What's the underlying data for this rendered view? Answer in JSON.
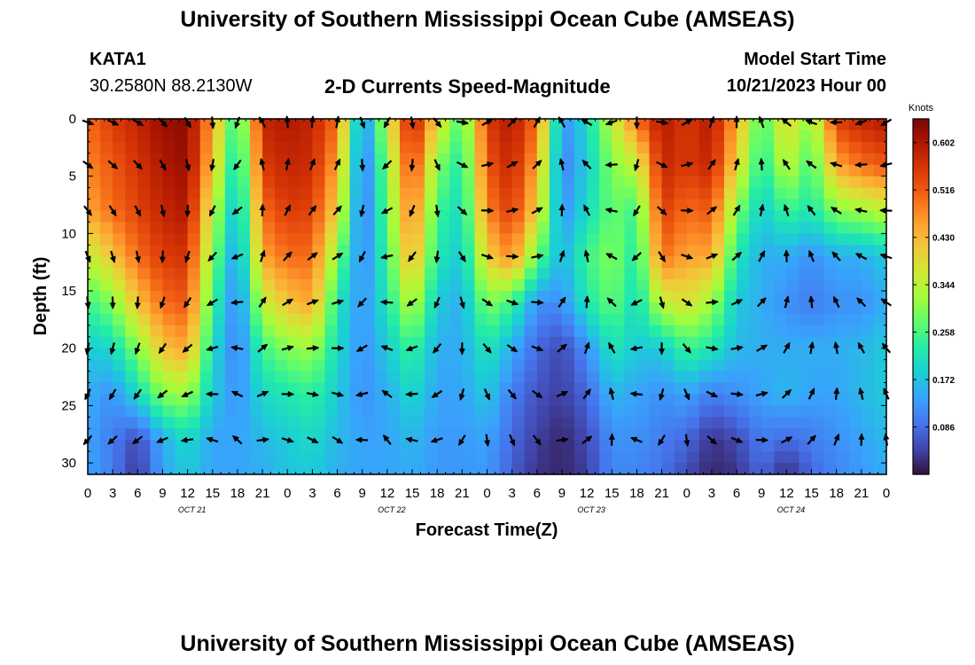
{
  "header": {
    "title": "University of Southern Mississippi Ocean Cube (AMSEAS)",
    "station_id": "KATA1",
    "station_coords": "30.2580N  88.2130W",
    "product": "2-D Currents Speed-Magnitude",
    "model_start_label": "Model Start Time",
    "model_start_value": "10/21/2023 Hour 00"
  },
  "footer": {
    "title": "University of Southern Mississippi Ocean Cube (AMSEAS)"
  },
  "chart_data": {
    "type": "heatmap",
    "title": "2-D Currents Speed-Magnitude",
    "xlabel": "Forecast Time(Z)",
    "ylabel": "Depth (ft)",
    "x_tick_labels": [
      "0",
      "3",
      "6",
      "9",
      "12",
      "15",
      "18",
      "21",
      "0",
      "3",
      "6",
      "9",
      "12",
      "15",
      "18",
      "21",
      "0",
      "3",
      "6",
      "9",
      "12",
      "15",
      "18",
      "21",
      "0",
      "3",
      "6",
      "9",
      "12",
      "15",
      "18",
      "21",
      "0"
    ],
    "x_range_hours": [
      0,
      96
    ],
    "day_labels": [
      {
        "text": "OCT 21",
        "hour": 12
      },
      {
        "text": "OCT 22",
        "hour": 36
      },
      {
        "text": "OCT 23",
        "hour": 60
      },
      {
        "text": "OCT 24",
        "hour": 84
      }
    ],
    "y_ticks": [
      0,
      5,
      10,
      15,
      20,
      25,
      30
    ],
    "ylim": [
      0,
      31
    ],
    "colorbar": {
      "label": "Knots",
      "ticks": [
        "0.602",
        "0.516",
        "0.430",
        "0.344",
        "0.258",
        "0.172",
        "0.086"
      ],
      "range": [
        0,
        0.645
      ],
      "colors": [
        "#30123b",
        "#4145ab",
        "#4675ed",
        "#39a2fc",
        "#1bcfd4",
        "#24eca6",
        "#61fc6c",
        "#a4fc3b",
        "#d1e834",
        "#f3c63a",
        "#fe9b2d",
        "#f36315",
        "#d93806",
        "#b11901",
        "#7a0403"
      ]
    },
    "arrow_depths_ft": [
      0,
      4,
      8,
      12,
      16,
      20,
      24,
      28
    ],
    "speed_profiles": {
      "depths_ft": [
        0,
        4,
        8,
        12,
        16,
        20,
        24,
        28,
        31
      ],
      "note": "speed in knots at 3-hour steps, hours 0..96",
      "series": [
        {
          "depth": 0,
          "values": [
            0.5,
            0.55,
            0.58,
            0.62,
            0.63,
            0.45,
            0.22,
            0.58,
            0.6,
            0.58,
            0.5,
            0.1,
            0.35,
            0.6,
            0.4,
            0.25,
            0.55,
            0.6,
            0.5,
            0.12,
            0.2,
            0.35,
            0.5,
            0.6,
            0.55,
            0.6,
            0.45,
            0.25,
            0.4,
            0.3,
            0.55,
            0.58,
            0.6
          ]
        },
        {
          "depth": 4,
          "values": [
            0.48,
            0.52,
            0.56,
            0.6,
            0.62,
            0.42,
            0.18,
            0.55,
            0.58,
            0.57,
            0.45,
            0.08,
            0.3,
            0.55,
            0.3,
            0.22,
            0.52,
            0.58,
            0.45,
            0.1,
            0.18,
            0.3,
            0.35,
            0.58,
            0.55,
            0.58,
            0.4,
            0.22,
            0.35,
            0.25,
            0.45,
            0.5,
            0.52
          ]
        },
        {
          "depth": 8,
          "values": [
            0.45,
            0.5,
            0.54,
            0.58,
            0.6,
            0.35,
            0.15,
            0.5,
            0.55,
            0.54,
            0.4,
            0.08,
            0.28,
            0.5,
            0.25,
            0.2,
            0.48,
            0.55,
            0.4,
            0.12,
            0.2,
            0.28,
            0.25,
            0.55,
            0.5,
            0.52,
            0.3,
            0.18,
            0.25,
            0.22,
            0.3,
            0.32,
            0.35
          ]
        },
        {
          "depth": 12,
          "values": [
            0.35,
            0.42,
            0.5,
            0.55,
            0.56,
            0.3,
            0.12,
            0.45,
            0.5,
            0.5,
            0.3,
            0.1,
            0.25,
            0.45,
            0.22,
            0.18,
            0.4,
            0.48,
            0.28,
            0.15,
            0.25,
            0.3,
            0.22,
            0.5,
            0.45,
            0.45,
            0.22,
            0.15,
            0.15,
            0.12,
            0.15,
            0.15,
            0.18
          ]
        },
        {
          "depth": 16,
          "values": [
            0.25,
            0.3,
            0.42,
            0.5,
            0.52,
            0.25,
            0.1,
            0.35,
            0.42,
            0.45,
            0.22,
            0.12,
            0.22,
            0.35,
            0.18,
            0.15,
            0.3,
            0.25,
            0.12,
            0.12,
            0.22,
            0.28,
            0.2,
            0.35,
            0.38,
            0.32,
            0.18,
            0.15,
            0.12,
            0.1,
            0.12,
            0.12,
            0.15
          ]
        },
        {
          "depth": 20,
          "values": [
            0.18,
            0.2,
            0.3,
            0.42,
            0.45,
            0.2,
            0.1,
            0.25,
            0.3,
            0.32,
            0.2,
            0.12,
            0.18,
            0.25,
            0.15,
            0.15,
            0.22,
            0.15,
            0.08,
            0.05,
            0.12,
            0.22,
            0.18,
            0.18,
            0.25,
            0.22,
            0.16,
            0.15,
            0.15,
            0.15,
            0.15,
            0.16,
            0.18
          ]
        },
        {
          "depth": 24,
          "values": [
            0.15,
            0.12,
            0.2,
            0.3,
            0.32,
            0.18,
            0.12,
            0.2,
            0.22,
            0.24,
            0.18,
            0.12,
            0.15,
            0.2,
            0.14,
            0.14,
            0.18,
            0.1,
            0.06,
            0.04,
            0.08,
            0.16,
            0.14,
            0.12,
            0.14,
            0.1,
            0.12,
            0.14,
            0.16,
            0.14,
            0.14,
            0.16,
            0.18
          ]
        },
        {
          "depth": 28,
          "values": [
            0.14,
            0.1,
            0.05,
            0.15,
            0.2,
            0.14,
            0.14,
            0.16,
            0.18,
            0.2,
            0.16,
            0.14,
            0.14,
            0.16,
            0.13,
            0.13,
            0.14,
            0.08,
            0.04,
            0.02,
            0.05,
            0.12,
            0.12,
            0.1,
            0.08,
            0.03,
            0.05,
            0.1,
            0.08,
            0.1,
            0.12,
            0.14,
            0.16
          ]
        },
        {
          "depth": 31,
          "values": [
            0.14,
            0.1,
            0.03,
            0.14,
            0.18,
            0.14,
            0.14,
            0.15,
            0.17,
            0.18,
            0.15,
            0.14,
            0.14,
            0.15,
            0.13,
            0.13,
            0.13,
            0.07,
            0.03,
            0.02,
            0.04,
            0.11,
            0.11,
            0.09,
            0.05,
            0.02,
            0.03,
            0.08,
            0.02,
            0.08,
            0.11,
            0.13,
            0.15
          ]
        }
      ]
    },
    "direction_profile_deg": {
      "note": "flow direction (degrees clockwise from north) at 3-hour steps, used for all depths",
      "values": [
        110,
        115,
        120,
        135,
        150,
        175,
        200,
        330,
        355,
        5,
        10,
        160,
        210,
        170,
        140,
        100,
        60,
        45,
        30,
        330,
        300,
        250,
        180,
        100,
        60,
        20,
        0,
        340,
        310,
        290,
        270,
        250,
        240
      ]
    }
  }
}
